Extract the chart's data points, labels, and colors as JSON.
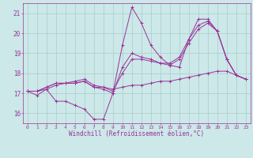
{
  "xlabel": "Windchill (Refroidissement éolien,°C)",
  "x": [
    0,
    1,
    2,
    3,
    4,
    5,
    6,
    7,
    8,
    9,
    10,
    11,
    12,
    13,
    14,
    15,
    16,
    17,
    18,
    19,
    20,
    21,
    22,
    23
  ],
  "series": [
    [
      17.1,
      16.9,
      17.2,
      16.6,
      16.6,
      16.4,
      16.2,
      15.7,
      15.7,
      17.0,
      19.4,
      21.3,
      20.5,
      19.4,
      18.8,
      18.4,
      18.3,
      19.7,
      20.7,
      20.7,
      20.1,
      18.7,
      17.9,
      17.7
    ],
    [
      17.1,
      17.1,
      17.3,
      17.5,
      17.5,
      17.5,
      17.6,
      17.3,
      17.2,
      17.0,
      18.3,
      19.0,
      18.8,
      18.7,
      18.5,
      18.4,
      18.7,
      19.5,
      20.2,
      20.5,
      20.1,
      18.7,
      17.9,
      17.7
    ],
    [
      17.1,
      17.1,
      17.3,
      17.5,
      17.5,
      17.6,
      17.7,
      17.4,
      17.3,
      17.1,
      18.0,
      18.7,
      18.7,
      18.6,
      18.5,
      18.5,
      18.8,
      19.7,
      20.4,
      20.6,
      20.1,
      18.7,
      17.9,
      17.7
    ],
    [
      17.1,
      17.1,
      17.2,
      17.4,
      17.5,
      17.5,
      17.6,
      17.3,
      17.3,
      17.2,
      17.3,
      17.4,
      17.4,
      17.5,
      17.6,
      17.6,
      17.7,
      17.8,
      17.9,
      18.0,
      18.1,
      18.1,
      17.9,
      17.7
    ]
  ],
  "color": "#993399",
  "bg_color": "#cce8e8",
  "grid_color": "#aacccc",
  "ylim": [
    15.5,
    21.5
  ],
  "yticks": [
    16,
    17,
    18,
    19,
    20,
    21
  ],
  "marker": "+"
}
